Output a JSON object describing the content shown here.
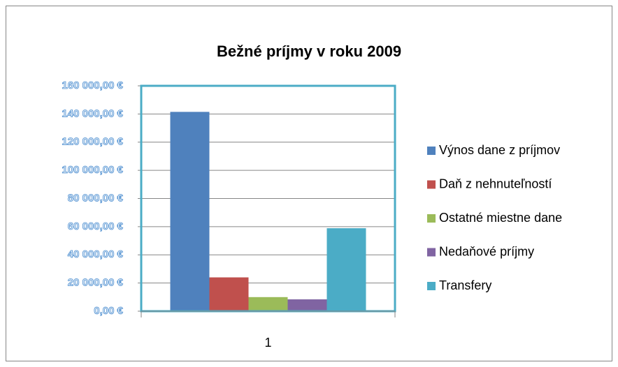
{
  "chart_data": {
    "type": "bar",
    "title": "Bežné  príjmy v roku 2009",
    "categories": [
      "1"
    ],
    "series": [
      {
        "name": "Výnos dane z príjmov",
        "color": "#4f81bd",
        "values": [
          141500
        ]
      },
      {
        "name": "Daň z nehnuteľností",
        "color": "#c0504d",
        "values": [
          24000
        ]
      },
      {
        "name": "Ostatné miestne dane",
        "color": "#9bbb59",
        "values": [
          10000
        ]
      },
      {
        "name": "Nedaňové príjmy",
        "color": "#8064a2",
        "values": [
          8400
        ]
      },
      {
        "name": "Transfery",
        "color": "#4bacc6",
        "values": [
          58900
        ]
      }
    ],
    "ylim": [
      0,
      160000
    ],
    "yticks": [
      {
        "value": 0,
        "label": "0,00 €"
      },
      {
        "value": 20000,
        "label": "20 000,00 €"
      },
      {
        "value": 40000,
        "label": "40 000,00 €"
      },
      {
        "value": 60000,
        "label": "60 000,00 €"
      },
      {
        "value": 80000,
        "label": "80 000,00 €"
      },
      {
        "value": 100000,
        "label": "100 000,00 €"
      },
      {
        "value": 120000,
        "label": "120 000,00 €"
      },
      {
        "value": 140000,
        "label": "140 000,00 €"
      },
      {
        "value": 160000,
        "label": "160 000,00 €"
      }
    ],
    "grid": true,
    "legend": "right"
  }
}
